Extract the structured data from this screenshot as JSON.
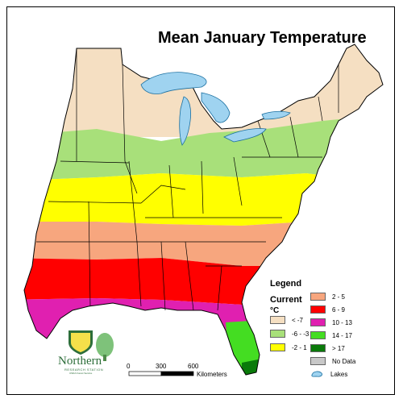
{
  "title": "Mean January Temperature",
  "legend": {
    "heading": "Legend",
    "subheading": "Current",
    "unit": "°C",
    "items": [
      {
        "label": "< -7",
        "color": "#f5dfc2"
      },
      {
        "label": "-6 - -3",
        "color": "#a8e07a"
      },
      {
        "label": "-2 - 1",
        "color": "#ffff00"
      },
      {
        "label": "2 - 5",
        "color": "#f7a67e"
      },
      {
        "label": "6 - 9",
        "color": "#ff0000"
      },
      {
        "label": "10 - 13",
        "color": "#e020b0"
      },
      {
        "label": "14 - 17",
        "color": "#44dd22"
      },
      {
        "label": "> 17",
        "color": "#0a7a0a"
      },
      {
        "label": "No Data",
        "color": "#c8c8c8"
      },
      {
        "label": "Lakes",
        "color": "#9fd3f0"
      }
    ]
  },
  "logo": {
    "text": "Northern",
    "subtext": "RESEARCH STATION",
    "tiny": "USDA Forest Service"
  },
  "scale": {
    "ticks": [
      "0",
      "300",
      "600"
    ],
    "unit": "Kilometers"
  },
  "colors": {
    "border": "#000000",
    "lakes": "#9fd3f0"
  }
}
